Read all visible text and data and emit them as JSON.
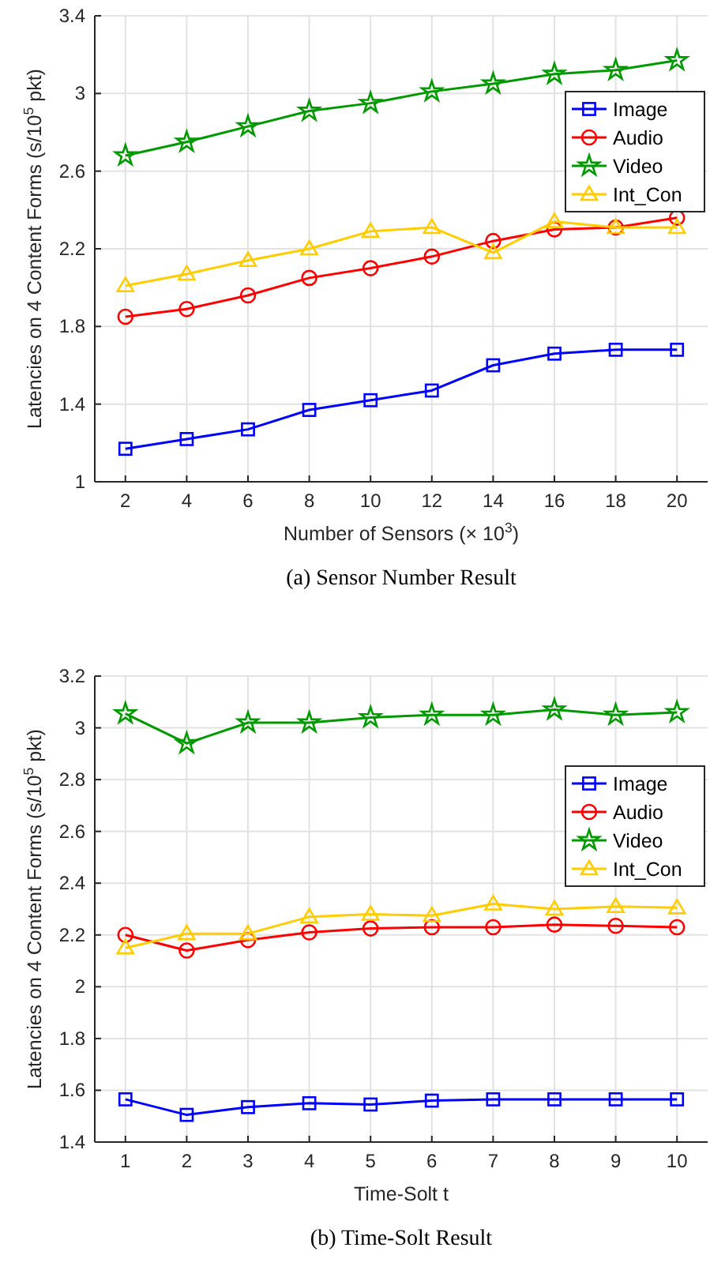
{
  "chart_data": [
    {
      "type": "line",
      "xlabel": "Number of Sensors (× 10$^{3}$)",
      "ylabel": "Latencies on 4 Content Forms (s/10$^{5}$ pkt)",
      "annotations": [
        "(a) Sensor Number Result"
      ],
      "x": [
        2,
        4,
        6,
        8,
        10,
        12,
        14,
        16,
        18,
        20
      ],
      "xlim": [
        1,
        21
      ],
      "xticks": [
        2,
        4,
        6,
        8,
        10,
        12,
        14,
        16,
        18,
        20
      ],
      "ylim": [
        1,
        3.4
      ],
      "yticks": [
        1,
        1.4,
        1.8,
        2.2,
        2.6,
        3,
        3.4
      ],
      "grid": true,
      "legend": "top right",
      "series": [
        {
          "name": "Image",
          "color": "#0000ff",
          "marker": "square",
          "values": [
            1.17,
            1.22,
            1.27,
            1.37,
            1.42,
            1.47,
            1.6,
            1.66,
            1.68,
            1.68
          ]
        },
        {
          "name": "Audio",
          "color": "#ff0000",
          "marker": "circle",
          "values": [
            1.85,
            1.89,
            1.96,
            2.05,
            2.1,
            2.16,
            2.24,
            2.3,
            2.31,
            2.36
          ]
        },
        {
          "name": "Video",
          "color": "#009900",
          "marker": "star",
          "values": [
            2.68,
            2.75,
            2.83,
            2.91,
            2.95,
            3.01,
            3.05,
            3.1,
            3.12,
            3.17
          ]
        },
        {
          "name": "Int_Con",
          "color": "#ffcc00",
          "marker": "triangle",
          "values": [
            2.01,
            2.07,
            2.14,
            2.2,
            2.29,
            2.31,
            2.18,
            2.34,
            2.31,
            2.31
          ]
        }
      ]
    },
    {
      "type": "line",
      "xlabel": "Time-Solt t",
      "ylabel": "Latencies on 4 Content Forms (s/10$^{5}$ pkt)",
      "annotations": [
        "(b) Time-Solt Result"
      ],
      "x": [
        1,
        2,
        3,
        4,
        5,
        6,
        7,
        8,
        9,
        10
      ],
      "xlim": [
        0.5,
        10.5
      ],
      "xticks": [
        1,
        2,
        3,
        4,
        5,
        6,
        7,
        8,
        9,
        10
      ],
      "ylim": [
        1.4,
        3.2
      ],
      "yticks": [
        1.4,
        1.6,
        1.8,
        2,
        2.2,
        2.4,
        2.6,
        2.8,
        3,
        3.2
      ],
      "grid": true,
      "legend": "right",
      "series": [
        {
          "name": "Image",
          "color": "#0000ff",
          "marker": "square",
          "values": [
            1.565,
            1.505,
            1.535,
            1.55,
            1.545,
            1.56,
            1.565,
            1.565,
            1.565,
            1.565
          ]
        },
        {
          "name": "Audio",
          "color": "#ff0000",
          "marker": "circle",
          "values": [
            2.2,
            2.14,
            2.18,
            2.21,
            2.225,
            2.23,
            2.23,
            2.24,
            2.235,
            2.23
          ]
        },
        {
          "name": "Video",
          "color": "#009900",
          "marker": "star",
          "values": [
            3.055,
            2.94,
            3.02,
            3.02,
            3.04,
            3.05,
            3.05,
            3.07,
            3.05,
            3.06
          ]
        },
        {
          "name": "Int_Con",
          "color": "#ffcc00",
          "marker": "triangle",
          "values": [
            2.15,
            2.205,
            2.205,
            2.27,
            2.28,
            2.275,
            2.32,
            2.3,
            2.31,
            2.305
          ]
        }
      ]
    }
  ]
}
